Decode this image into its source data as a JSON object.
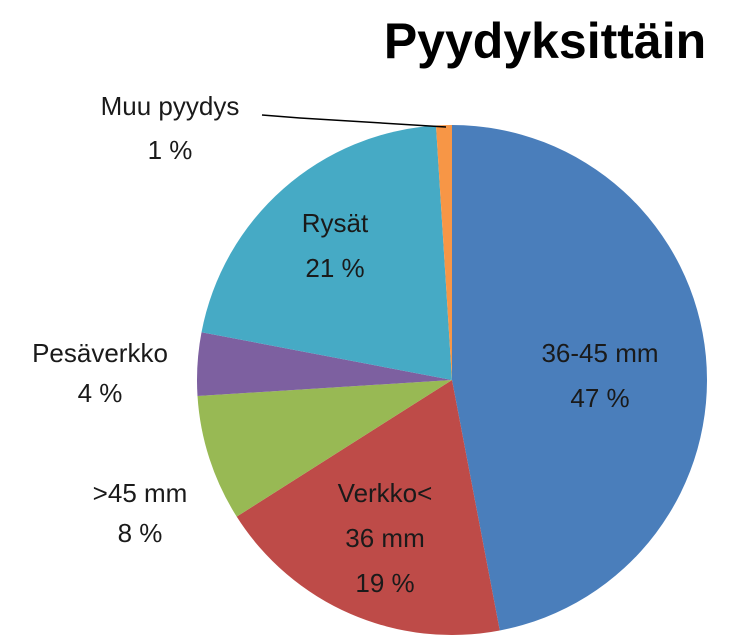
{
  "chart_data": {
    "type": "pie",
    "title": "Pyydyksittäin",
    "categories": [
      "36-45 mm",
      "Verkko<\n36 mm",
      ">45 mm",
      "Pesäverkko",
      "Rysät",
      "Muu pyydys"
    ],
    "values": [
      47,
      19,
      8,
      4,
      21,
      1
    ],
    "value_labels": [
      "47 %",
      "19 %",
      "8 %",
      "4 %",
      "21 %",
      "1 %"
    ],
    "colors": [
      "#4a7ebb",
      "#be4b48",
      "#98b954",
      "#7d60a0",
      "#46aac5",
      "#f79646"
    ]
  }
}
